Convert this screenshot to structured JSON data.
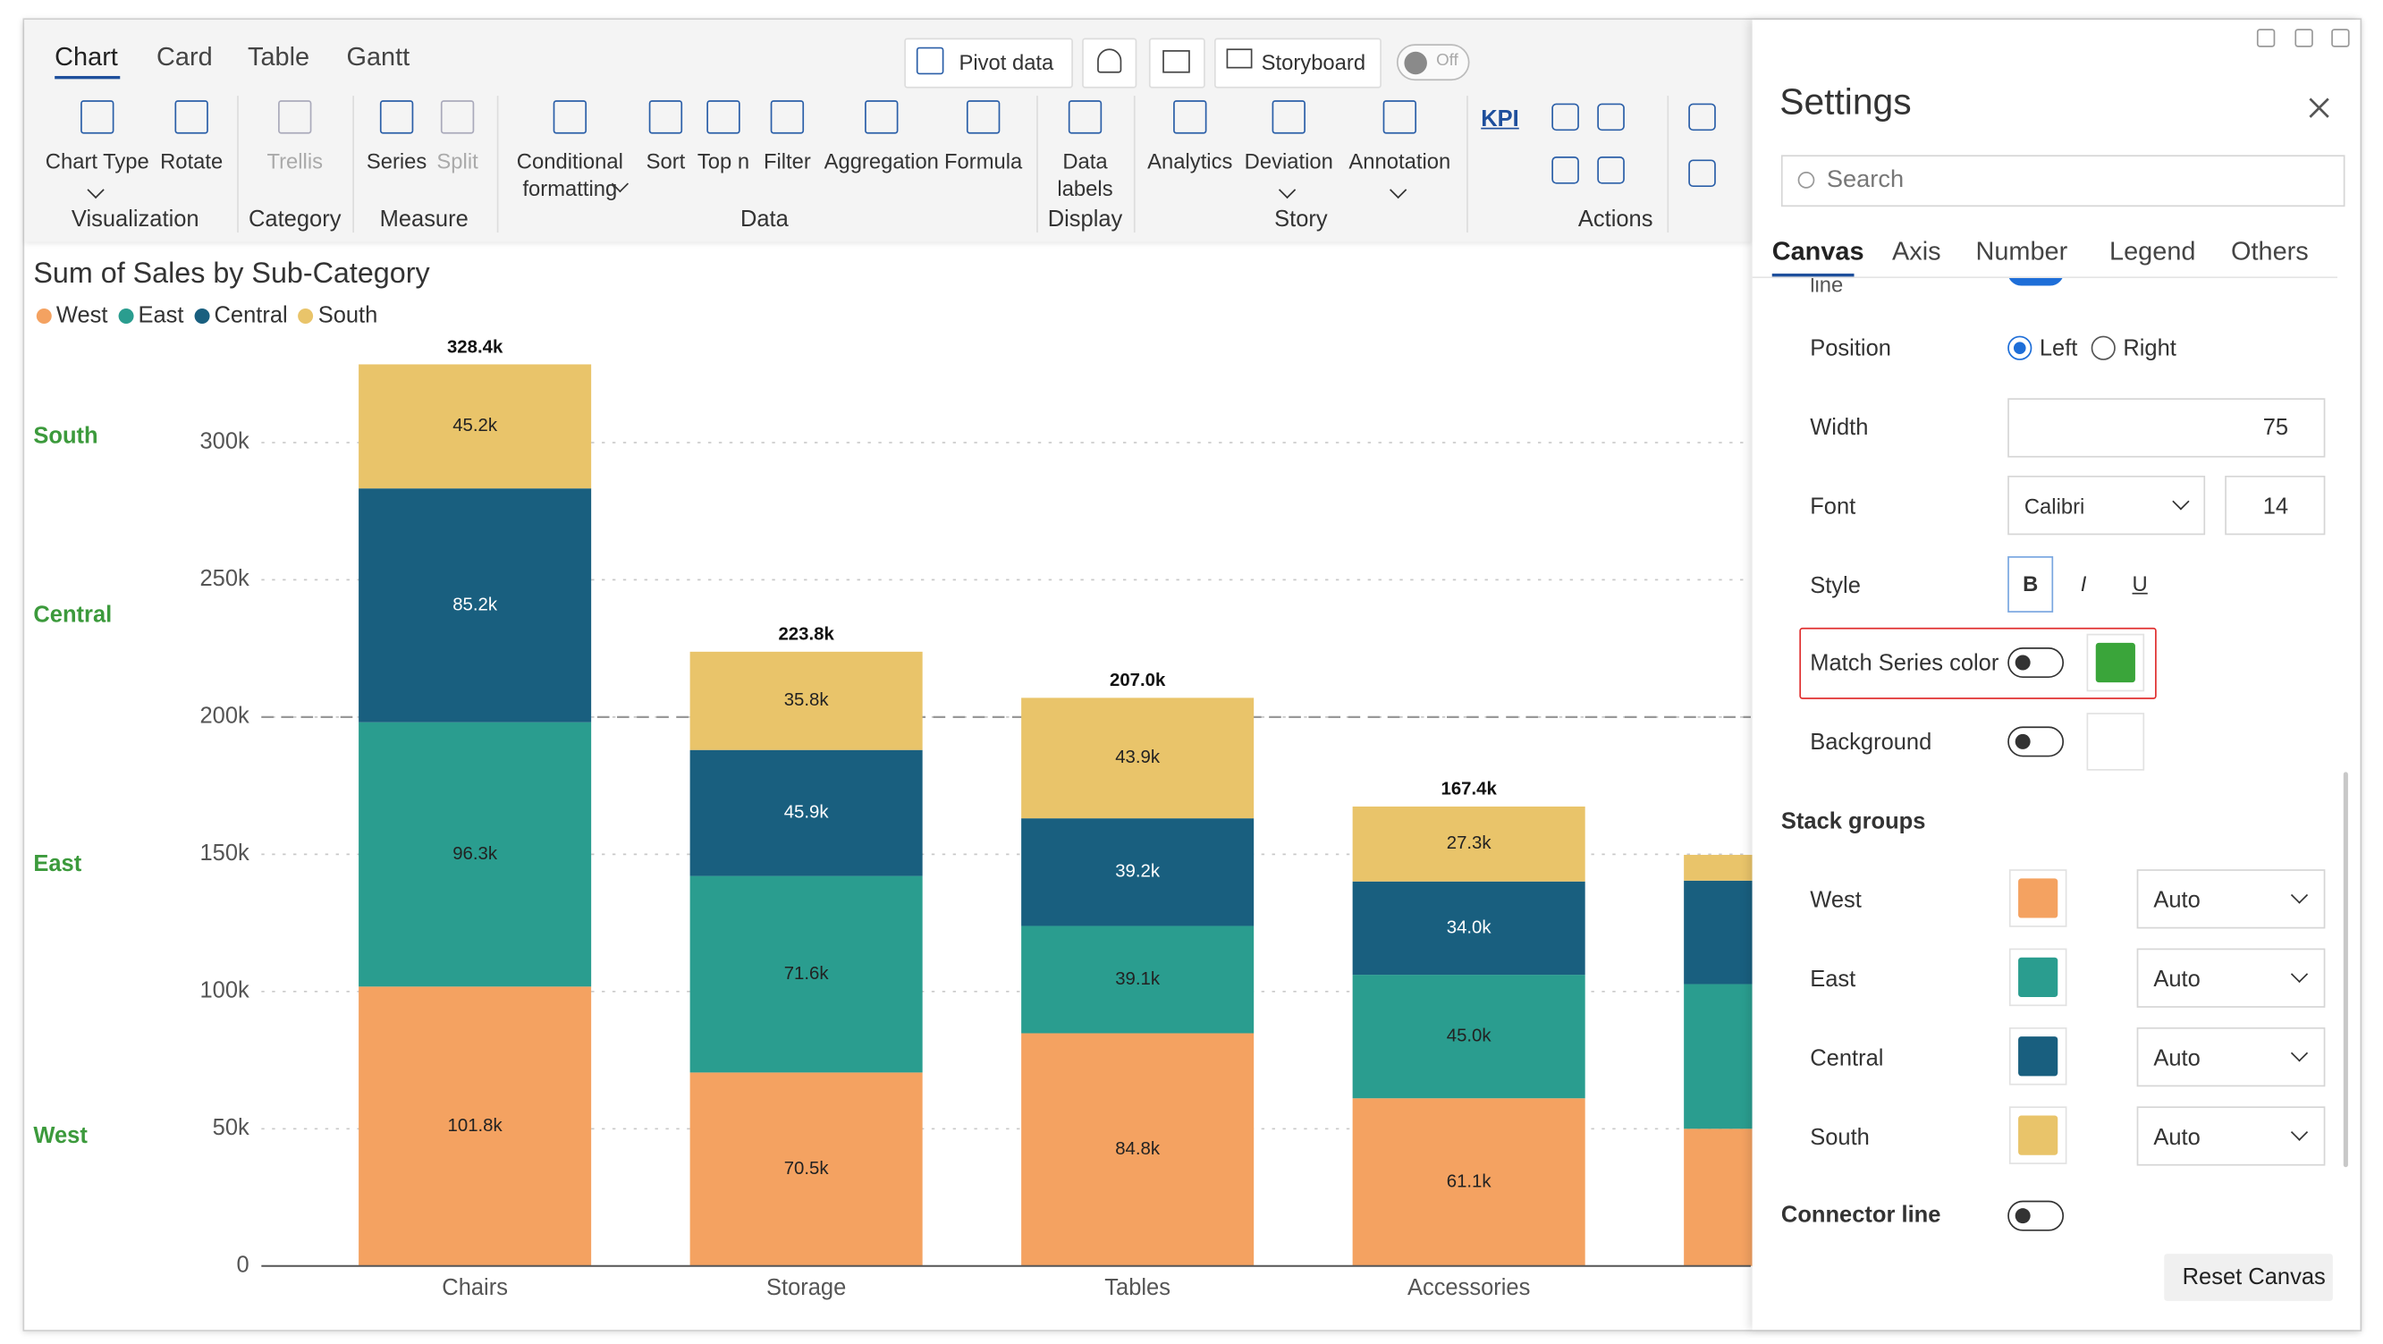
{
  "ribbon": {
    "tabs": [
      "Chart",
      "Card",
      "Table",
      "Gantt"
    ],
    "top_buttons": [
      "Pivot data",
      "Storyboard"
    ],
    "toggle": "Off",
    "groups": [
      {
        "name": "Visualization",
        "items": [
          "Chart Type",
          "Rotate"
        ]
      },
      {
        "name": "Category",
        "items": [
          "Trellis"
        ]
      },
      {
        "name": "Measure",
        "items": [
          "Series",
          "Split"
        ]
      },
      {
        "name": "Data",
        "items": [
          "Conditional formatting",
          "Sort",
          "Top n",
          "Filter",
          "Aggregation",
          "Formula"
        ]
      },
      {
        "name": "Display",
        "items": [
          "Data labels"
        ]
      },
      {
        "name": "Story",
        "items": [
          "Analytics",
          "Deviation",
          "Annotation"
        ]
      },
      {
        "name": "Actions",
        "items": [
          "KPI"
        ]
      }
    ]
  },
  "chart_data": {
    "type": "bar",
    "stacked": true,
    "title": "Sum of Sales by Sub-Category",
    "categories": [
      "Chairs",
      "Storage",
      "Tables",
      "Accessories",
      null
    ],
    "series": [
      {
        "name": "West",
        "color": "#f4a261",
        "values": [
          101800,
          70500,
          84800,
          61100,
          50000
        ],
        "value_labels": [
          "101.8k",
          "70.5k",
          "84.8k",
          "61.1k",
          null
        ]
      },
      {
        "name": "East",
        "color": "#2a9d8f",
        "values": [
          96300,
          71600,
          39100,
          45000,
          52700
        ],
        "value_labels": [
          "96.3k",
          "71.6k",
          "39.1k",
          "45.0k",
          null
        ]
      },
      {
        "name": "Central",
        "color": "#195f7f",
        "values": [
          85200,
          45900,
          39200,
          34000,
          37700
        ],
        "value_labels": [
          "85.2k",
          "45.9k",
          "39.2k",
          "34.0k",
          null
        ]
      },
      {
        "name": "South",
        "color": "#e9c46a",
        "values": [
          45200,
          35800,
          43900,
          27300,
          9400
        ],
        "value_labels": [
          "45.2k",
          "35.8k",
          "43.9k",
          "27.3k",
          null
        ]
      }
    ],
    "totals": {
      "values": [
        328400,
        223800,
        207000,
        167400,
        null
      ],
      "value_labels": [
        "328.4k",
        "223.8k",
        "207.0k",
        "167.4k",
        null
      ]
    },
    "ylim": [
      0,
      335000
    ],
    "yticks": [
      0,
      {
        "value": 50000,
        "label": "50k"
      },
      {
        "value": 100000,
        "label": "100k"
      },
      {
        "value": 150000,
        "label": "150k"
      },
      {
        "value": 200000,
        "label": "200k"
      },
      {
        "value": 250000,
        "label": "250k"
      },
      {
        "value": 300000,
        "label": "300k"
      }
    ],
    "grid": true,
    "reference_line": 200000,
    "series_axis_labels": true,
    "series_axis_label_color": "#3c9a3c"
  },
  "settings": {
    "title": "Settings",
    "search": "Search",
    "tabs": [
      "Canvas",
      "Axis",
      "Number",
      "Legend",
      "Others"
    ],
    "partial_row": "line",
    "position": {
      "label": "Position",
      "options": [
        "Left",
        "Right"
      ]
    },
    "width": {
      "label": "Width",
      "value": "75"
    },
    "font": {
      "label": "Font",
      "family": "Calibri",
      "size": "14"
    },
    "style": {
      "label": "Style",
      "buttons": [
        "B",
        "I",
        "U"
      ]
    },
    "match_series_color": {
      "label": "Match Series color",
      "on": false,
      "color": "#3aa53a"
    },
    "background": {
      "label": "Background",
      "on": false,
      "color": "#ffffff"
    },
    "stack_groups": {
      "label": "Stack groups",
      "items": [
        {
          "name": "West",
          "color": "#f4a261",
          "mode": "Auto"
        },
        {
          "name": "East",
          "color": "#2a9d8f",
          "mode": "Auto"
        },
        {
          "name": "Central",
          "color": "#195f7f",
          "mode": "Auto"
        },
        {
          "name": "South",
          "color": "#e9c46a",
          "mode": "Auto"
        }
      ]
    },
    "connector_line": {
      "label": "Connector line",
      "on": false
    },
    "reset": "Reset Canvas"
  }
}
